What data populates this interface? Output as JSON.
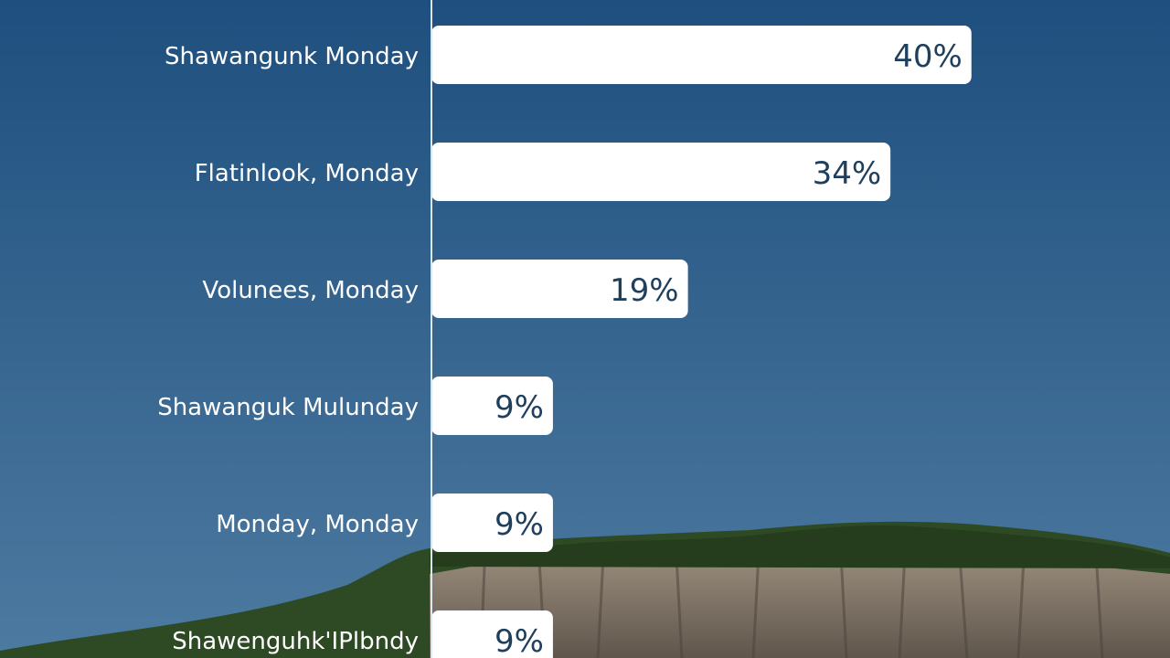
{
  "colors": {
    "sky_top": "#1e4f7e",
    "sky_bottom": "#4d7aa0",
    "bar_fill": "#ffffff",
    "value_text": "#1f3f5c",
    "label_text": "#ffffff",
    "axis_line": "#dce8f2",
    "forest": "#2e4a24",
    "cliff": "#7d7164"
  },
  "chart_data": {
    "type": "bar",
    "orientation": "horizontal",
    "categories": [
      "Shawangunk Monday",
      "Flatinlook, Monday",
      "Volunees, Monday",
      "Shawanguk Mulunday",
      "Monday, Monday",
      "Shawenguhk'IPlbndy"
    ],
    "values": [
      40,
      34,
      19,
      9,
      9,
      9
    ],
    "value_labels": [
      "40%",
      "34%",
      "19%",
      "9%",
      "9%",
      "9%"
    ],
    "xlim": [
      0,
      52
    ],
    "grid": false,
    "legend": "none"
  }
}
